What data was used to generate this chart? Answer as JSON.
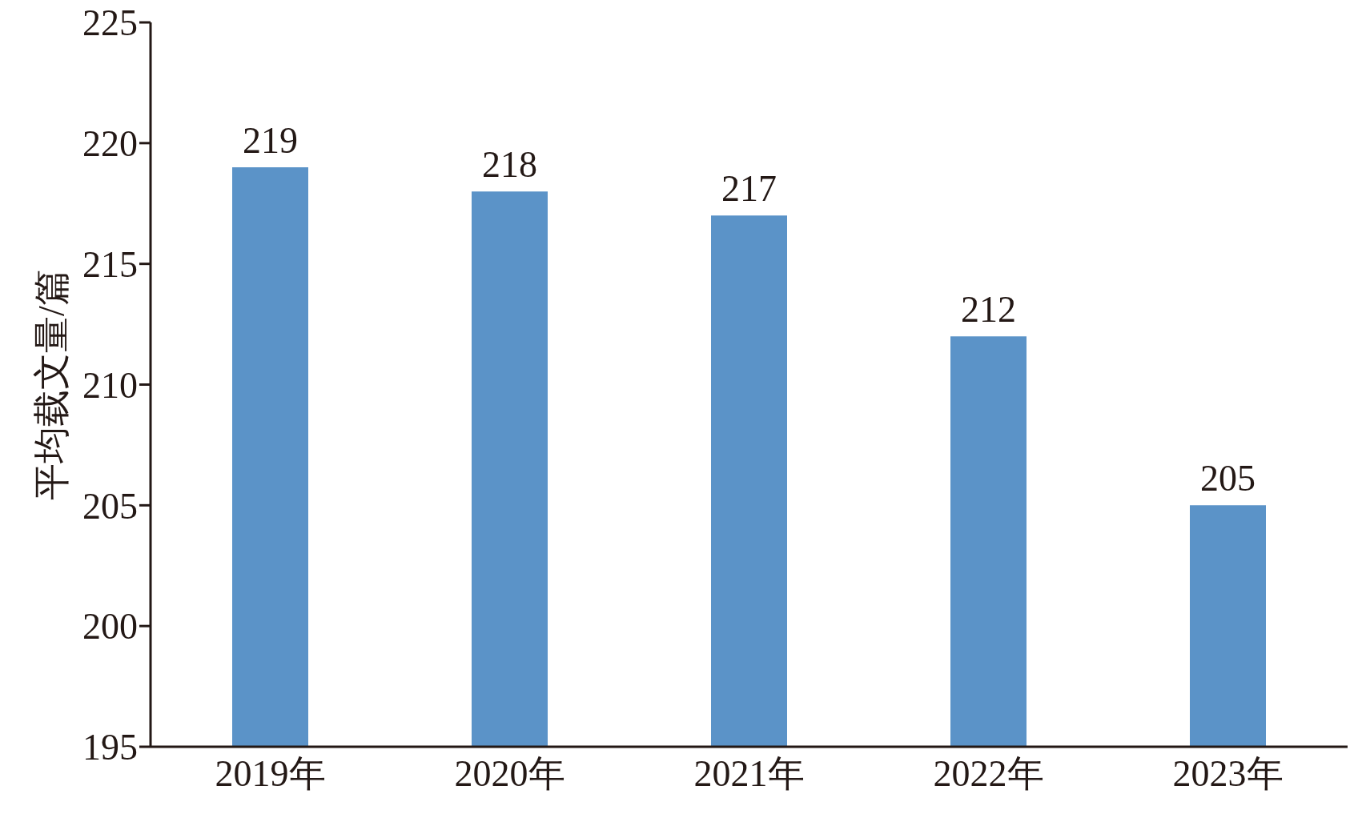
{
  "chart_data": {
    "type": "bar",
    "ylabel": "平均载文量/篇",
    "categories": [
      "2019年",
      "2020年",
      "2021年",
      "2022年",
      "2023年"
    ],
    "values": [
      219,
      218,
      217,
      212,
      205
    ],
    "color": "#5b93c8",
    "ylim": [
      195,
      225
    ],
    "yticks": [
      195,
      200,
      205,
      210,
      215,
      220,
      225
    ],
    "data_labels": true,
    "grid": false,
    "legend": false
  }
}
